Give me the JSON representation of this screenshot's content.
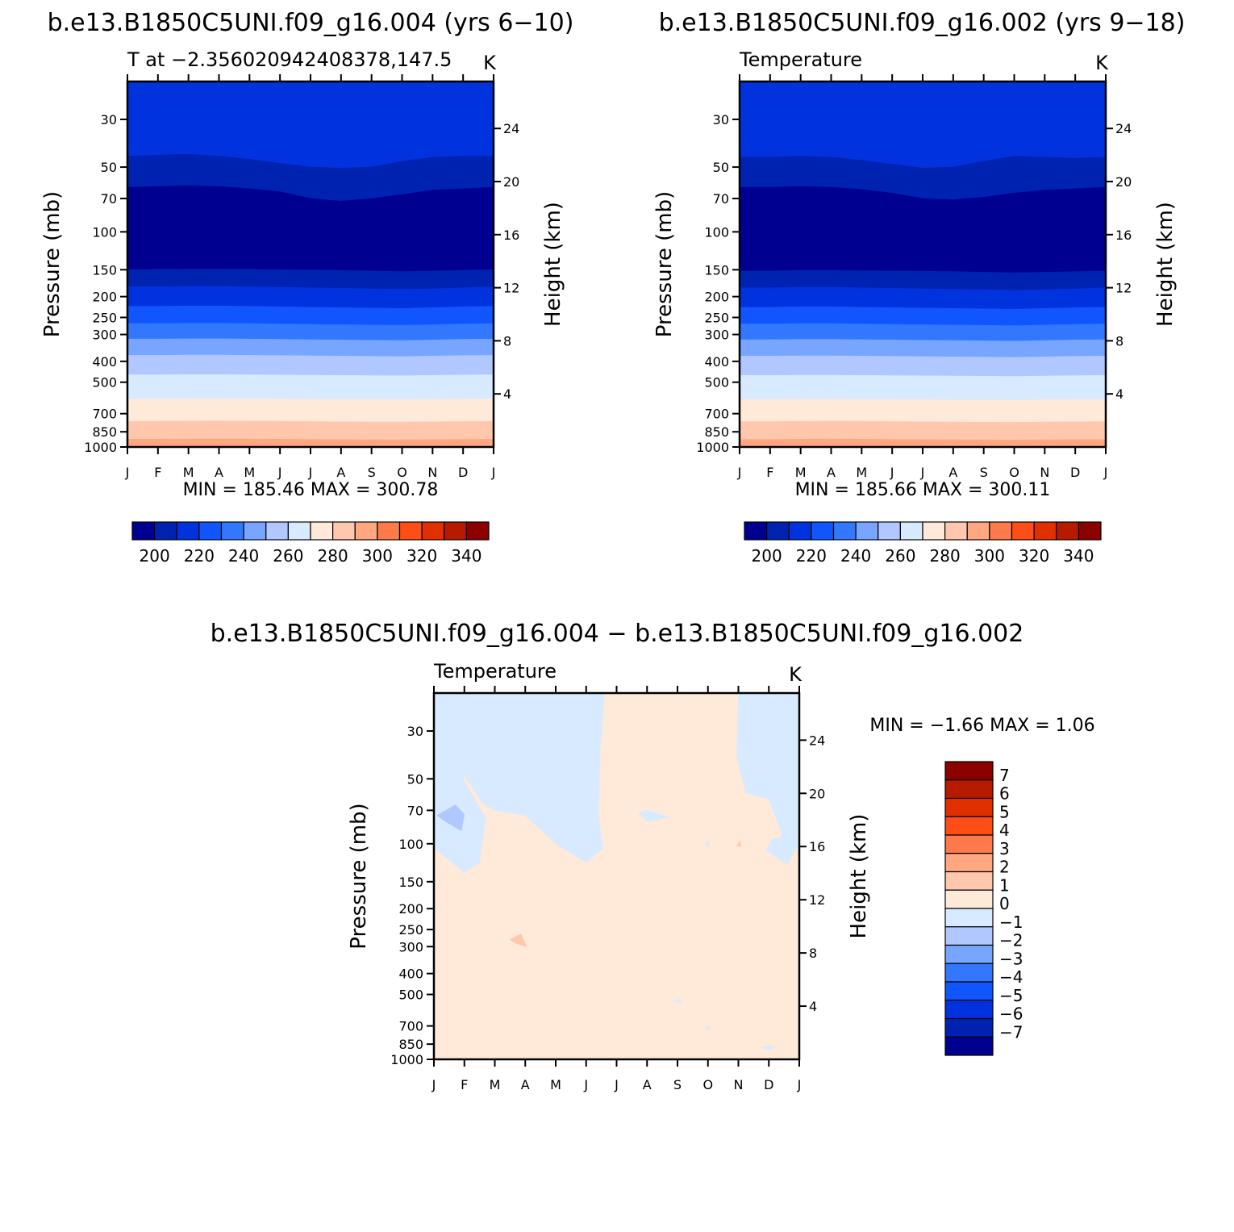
{
  "figure": {
    "panel1_title": "b.e13.B1850C5UNI.f09_g16.004 (yrs 6−10)",
    "panel2_title": "b.e13.B1850C5UNI.f09_g16.002 (yrs 9−18)",
    "diff_title": "b.e13.B1850C5UNI.f09_g16.004 − b.e13.B1850C5UNI.f09_g16.002"
  },
  "chart_data": [
    {
      "type": "heatmap",
      "title": "b.e13.B1850C5UNI.f09_g16.004 (yrs 6−10)",
      "subtitle": "T at −2.356020942408378,147.5",
      "units": "K",
      "xlabel": "",
      "ylabel": "Pressure (mb)",
      "ylabel_right": "Height (km)",
      "x_ticks": [
        "J",
        "F",
        "M",
        "A",
        "M",
        "J",
        "J",
        "A",
        "S",
        "O",
        "N",
        "D",
        "J"
      ],
      "y_ticks": [
        "30",
        "50",
        "70",
        "100",
        "150",
        "200",
        "250",
        "300",
        "400",
        "500",
        "700",
        "850",
        "1000"
      ],
      "y_values": [
        30,
        50,
        70,
        100,
        150,
        200,
        250,
        300,
        400,
        500,
        700,
        850,
        1000
      ],
      "height_ticks": [
        "24",
        "20",
        "16",
        "12",
        "8",
        "4"
      ],
      "height_values": [
        24,
        20,
        16,
        12,
        8,
        4
      ],
      "stats": "MIN = 185.46 MAX = 300.78",
      "min": 185.46,
      "max": 300.78,
      "level_boundaries_mb": [
        [
          44.5,
          44,
          43.5,
          44.5,
          46,
          48,
          50,
          50.5,
          50,
          47,
          45,
          44.5,
          44.5
        ],
        [
          62,
          61.5,
          61,
          61.5,
          63,
          65,
          70,
          72,
          70,
          67,
          64,
          63,
          62
        ],
        [
          150,
          149.5,
          149,
          149,
          149.5,
          150,
          150.5,
          151,
          152,
          153,
          152,
          151,
          150
        ],
        [
          180,
          180,
          179,
          179,
          180,
          181,
          182,
          183,
          184,
          185,
          184,
          182,
          180
        ],
        [
          222,
          222,
          221,
          221,
          222,
          223,
          224,
          225,
          226,
          227,
          225,
          223,
          222
        ],
        [
          267,
          267,
          266,
          266,
          267,
          268,
          269,
          270,
          271,
          272,
          270,
          268,
          267
        ],
        [
          315,
          315,
          314,
          314,
          315,
          316,
          317,
          318,
          319,
          320,
          318,
          316,
          315
        ],
        [
          375,
          375,
          374,
          374,
          375,
          376,
          377,
          378,
          379,
          380,
          378,
          376,
          375
        ],
        [
          462,
          462,
          461,
          461,
          462,
          463,
          464,
          465,
          466,
          467,
          465,
          463,
          462
        ],
        [
          600,
          599,
          598,
          598,
          599,
          600,
          601,
          602,
          602,
          603,
          601,
          600,
          600
        ],
        [
          760,
          760,
          758,
          757,
          758,
          760,
          762,
          764,
          765,
          766,
          764,
          762,
          760
        ],
        [
          920,
          920,
          918,
          917,
          918,
          920,
          922,
          924,
          925,
          926,
          924,
          922,
          920
        ],
        [
          995,
          995,
          995,
          995,
          995,
          995,
          995,
          995,
          995,
          995,
          995,
          995,
          995
        ]
      ],
      "band_colors": [
        "#0033DD",
        "#0022B0",
        "#000090",
        "#0022B0",
        "#0033DD",
        "#1155FF",
        "#3377FF",
        "#77A5FF",
        "#B0C8FF",
        "#D8EAFF",
        "#FFE9D8",
        "#FFC8AE",
        "#FFA780",
        "#FFE9D8"
      ],
      "colorbar": {
        "colors": [
          "#000090",
          "#0022B0",
          "#0033DD",
          "#1155FF",
          "#3377FF",
          "#77A5FF",
          "#B0C8FF",
          "#D8EAFF",
          "#FFE9D8",
          "#FFC8AE",
          "#FFA780",
          "#FF7A4A",
          "#FF4D17",
          "#E03000",
          "#B81A00",
          "#8C0000"
        ],
        "labels": [
          "200",
          "220",
          "240",
          "260",
          "280",
          "300",
          "320",
          "340"
        ]
      }
    },
    {
      "type": "heatmap",
      "title": "b.e13.B1850C5UNI.f09_g16.002 (yrs 9−18)",
      "subtitle": "Temperature",
      "units": "K",
      "xlabel": "",
      "ylabel": "Pressure (mb)",
      "ylabel_right": "Height (km)",
      "x_ticks": [
        "J",
        "F",
        "M",
        "A",
        "M",
        "J",
        "J",
        "A",
        "S",
        "O",
        "N",
        "D",
        "J"
      ],
      "y_ticks": [
        "30",
        "50",
        "70",
        "100",
        "150",
        "200",
        "250",
        "300",
        "400",
        "500",
        "700",
        "850",
        "1000"
      ],
      "y_values": [
        30,
        50,
        70,
        100,
        150,
        200,
        250,
        300,
        400,
        500,
        700,
        850,
        1000
      ],
      "height_ticks": [
        "24",
        "20",
        "16",
        "12",
        "8",
        "4"
      ],
      "height_values": [
        24,
        20,
        16,
        12,
        8,
        4
      ],
      "stats": "MIN = 185.66 MAX = 300.11",
      "min": 185.66,
      "max": 300.11,
      "level_boundaries_mb": [
        [
          45,
          45,
          44.5,
          45,
          46.5,
          48.5,
          50.5,
          50,
          47,
          44.5,
          45,
          45.5,
          45
        ],
        [
          62,
          62,
          61.5,
          62,
          63.5,
          66,
          70,
          71,
          69,
          66,
          64,
          63,
          62
        ],
        [
          152,
          152,
          151,
          151,
          151.5,
          152,
          152.5,
          153,
          154,
          155,
          154,
          153,
          152
        ],
        [
          182,
          182,
          181,
          181,
          182,
          183,
          184,
          185,
          186,
          187,
          186,
          184,
          182
        ],
        [
          224,
          224,
          223,
          223,
          224,
          225,
          226,
          227,
          228,
          229,
          227,
          225,
          224
        ],
        [
          268,
          268,
          267,
          267,
          268,
          269,
          270,
          271,
          272,
          273,
          271,
          269,
          268
        ],
        [
          317,
          317,
          316,
          316,
          317,
          318,
          319,
          320,
          321,
          322,
          320,
          318,
          317
        ],
        [
          378,
          378,
          377,
          377,
          378,
          379,
          380,
          381,
          382,
          383,
          381,
          379,
          378
        ],
        [
          465,
          465,
          464,
          464,
          465,
          466,
          467,
          468,
          469,
          470,
          468,
          466,
          465
        ],
        [
          603,
          602,
          601,
          601,
          602,
          603,
          604,
          605,
          605,
          606,
          604,
          603,
          603
        ],
        [
          762,
          762,
          760,
          759,
          760,
          762,
          764,
          766,
          767,
          768,
          766,
          764,
          762
        ],
        [
          922,
          922,
          920,
          919,
          920,
          922,
          924,
          926,
          927,
          928,
          926,
          924,
          922
        ],
        [
          995,
          995,
          995,
          995,
          995,
          995,
          995,
          995,
          995,
          995,
          995,
          995,
          995
        ]
      ],
      "band_colors": [
        "#0033DD",
        "#0022B0",
        "#000090",
        "#0022B0",
        "#0033DD",
        "#1155FF",
        "#3377FF",
        "#77A5FF",
        "#B0C8FF",
        "#D8EAFF",
        "#FFE9D8",
        "#FFC8AE",
        "#FFA780",
        "#FFE9D8"
      ],
      "colorbar": {
        "colors": [
          "#000090",
          "#0022B0",
          "#0033DD",
          "#1155FF",
          "#3377FF",
          "#77A5FF",
          "#B0C8FF",
          "#D8EAFF",
          "#FFE9D8",
          "#FFC8AE",
          "#FFA780",
          "#FF7A4A",
          "#FF4D17",
          "#E03000",
          "#B81A00",
          "#8C0000"
        ],
        "labels": [
          "200",
          "220",
          "240",
          "260",
          "280",
          "300",
          "320",
          "340"
        ]
      }
    },
    {
      "type": "heatmap",
      "title": "b.e13.B1850C5UNI.f09_g16.004 − b.e13.B1850C5UNI.f09_g16.002",
      "subtitle": "Temperature",
      "units": "K",
      "xlabel": "",
      "ylabel": "Pressure (mb)",
      "ylabel_right": "Height (km)",
      "x_ticks": [
        "J",
        "F",
        "M",
        "A",
        "M",
        "J",
        "J",
        "A",
        "S",
        "O",
        "N",
        "D",
        "J"
      ],
      "y_ticks": [
        "30",
        "50",
        "70",
        "100",
        "150",
        "200",
        "250",
        "300",
        "400",
        "500",
        "700",
        "850",
        "1000"
      ],
      "y_values": [
        30,
        50,
        70,
        100,
        150,
        200,
        250,
        300,
        400,
        500,
        700,
        850,
        1000
      ],
      "height_ticks": [
        "24",
        "20",
        "16",
        "12",
        "8",
        "4"
      ],
      "height_values": [
        24,
        20,
        16,
        12,
        8,
        4
      ],
      "stats": "MIN = −1.66 MAX = 1.06",
      "min": -1.66,
      "max": 1.06,
      "background_color": "#FFE9D8",
      "regions": [
        {
          "color": "#D8EAFF",
          "points": [
            [
              0,
              20
            ],
            [
              5.6,
              20
            ],
            [
              5.45,
              38
            ],
            [
              5.4,
              75
            ],
            [
              5.55,
              105
            ],
            [
              5.0,
              122
            ],
            [
              4.0,
              100
            ],
            [
              3.0,
              74
            ],
            [
              2.0,
              70
            ],
            [
              1.6,
              65
            ],
            [
              1.0,
              48
            ],
            [
              0.95,
              50
            ],
            [
              1.7,
              76
            ],
            [
              1.5,
              122
            ],
            [
              1.0,
              136
            ],
            [
              0,
              105
            ]
          ]
        },
        {
          "color": "#D8EAFF",
          "points": [
            [
              10.0,
              20
            ],
            [
              12,
              20
            ],
            [
              12,
              100
            ],
            [
              11.6,
              125
            ],
            [
              10.9,
              107
            ],
            [
              11.1,
              96
            ],
            [
              11.45,
              92
            ],
            [
              11.0,
              62
            ],
            [
              10.25,
              58
            ],
            [
              9.95,
              40
            ]
          ]
        },
        {
          "color": "#B0C8FF",
          "points": [
            [
              0.1,
              74
            ],
            [
              0.7,
              66
            ],
            [
              1.0,
              73
            ],
            [
              0.9,
              87
            ],
            [
              0.45,
              80
            ]
          ]
        },
        {
          "color": "#D8EAFF",
          "points": [
            [
              6.7,
              72
            ],
            [
              7.0,
              70
            ],
            [
              7.7,
              75
            ],
            [
              7.05,
              79
            ]
          ]
        },
        {
          "color": "#D8EAFF",
          "points": [
            [
              8.9,
              101
            ],
            [
              9.0,
              97
            ],
            [
              9.05,
              104
            ]
          ]
        },
        {
          "color": "#FFC8AE",
          "points": [
            [
              9.95,
              102
            ],
            [
              10.05,
              97
            ],
            [
              10.08,
              103
            ]
          ]
        },
        {
          "color": "#FFC8AE",
          "points": [
            [
              2.5,
              278
            ],
            [
              2.85,
              262
            ],
            [
              3.05,
              300
            ],
            [
              2.7,
              290
            ]
          ]
        },
        {
          "color": "#D8EAFF",
          "points": [
            [
              7.85,
              540
            ],
            [
              8.05,
              525
            ],
            [
              8.15,
              545
            ]
          ]
        },
        {
          "color": "#D8EAFF",
          "points": [
            [
              8.9,
              720
            ],
            [
              9.0,
              700
            ],
            [
              9.1,
              730
            ]
          ]
        },
        {
          "color": "#D8EAFF",
          "points": [
            [
              10.75,
              880
            ],
            [
              11.0,
              860
            ],
            [
              11.2,
              880
            ],
            [
              11.0,
              900
            ]
          ]
        }
      ],
      "colorbar": {
        "colors": [
          "#000090",
          "#0022B0",
          "#0033DD",
          "#1155FF",
          "#3377FF",
          "#77A5FF",
          "#B0C8FF",
          "#D8EAFF",
          "#FFE9D8",
          "#FFC8AE",
          "#FFA780",
          "#FF7A4A",
          "#FF4D17",
          "#E03000",
          "#B81A00",
          "#8C0000"
        ],
        "labels": [
          "7",
          "6",
          "5",
          "4",
          "3",
          "2",
          "1",
          "0",
          "−1",
          "−2",
          "−3",
          "−4",
          "−5",
          "−6",
          "−7"
        ]
      }
    }
  ]
}
